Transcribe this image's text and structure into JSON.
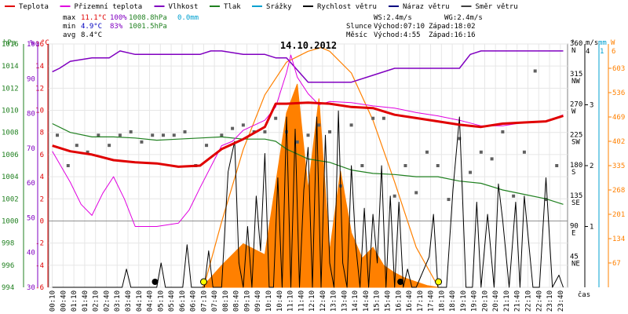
{
  "chart_data": {
    "type": "line",
    "title": "14.10.2012",
    "legend": [
      {
        "label": "Teplota",
        "color": "#e00000"
      },
      {
        "label": "Přizemní teplota",
        "color": "#e000e0"
      },
      {
        "label": "Vlhkost",
        "color": "#8000c0"
      },
      {
        "label": "Tlak",
        "color": "#208020"
      },
      {
        "label": "Srážky",
        "color": "#00a0d0"
      },
      {
        "label": "Rychlost větru",
        "color": "#000000"
      },
      {
        "label": "Náraz větru",
        "color": "#000080"
      },
      {
        "label": "Směr větru",
        "color": "#404040"
      }
    ],
    "stats": {
      "max_label": "max",
      "max_temp": "11.1°C",
      "max_hum": "100%",
      "max_press": "1008.8hPa",
      "max_rain": "0.0mm",
      "min_label": "min",
      "min_temp": "4.9°C",
      "min_hum": "83%",
      "min_press": "1001.5hPa",
      "avg_label": "avg",
      "avg_temp": "8.4°C"
    },
    "wind_info": {
      "ws": "WS:2.4m/s",
      "wg": "WG:2.4m/s"
    },
    "sun_info": {
      "label": "Slunce",
      "rise": "Východ:07:10",
      "set": "Západ:18:02"
    },
    "moon_info": {
      "label": "Měsíc",
      "rise": "Východ:4:55",
      "set": "Západ:16:16"
    },
    "axes": {
      "hpa_label": "hPa",
      "hum_label": "%",
      "temp_label": "°C",
      "dir_label": "°",
      "ms_label": "m/s",
      "mm_label": "mm",
      "w_label": "W",
      "x_label": "čas",
      "hpa_ticks": [
        "994",
        "996",
        "998",
        "1000",
        "1002",
        "1004",
        "1006",
        "1008",
        "1010",
        "1012",
        "1014",
        "1016"
      ],
      "hum_ticks": [
        "30",
        "40",
        "50",
        "60",
        "70",
        "80",
        "90",
        "100"
      ],
      "temp_ticks": [
        "-6",
        "-4",
        "-2",
        "0",
        "2",
        "4",
        "6",
        "8",
        "10",
        "12",
        "14",
        "16"
      ],
      "dir_ticks": [
        [
          "360",
          "N"
        ],
        [
          "315",
          "NW"
        ],
        [
          "270",
          "W"
        ],
        [
          "225",
          "SW"
        ],
        [
          "180",
          "S"
        ],
        [
          "135",
          "SE"
        ],
        [
          "90",
          "E"
        ],
        [
          "45",
          "NE"
        ]
      ],
      "ms_ticks": [
        "3",
        "2",
        "1"
      ],
      "ms_top": "4",
      "mm_top": "1",
      "w_ticks": [
        "67",
        "134",
        "201",
        "268",
        "335",
        "402",
        "469",
        "536",
        "603"
      ],
      "w_top": "6",
      "time_ticks": [
        "00:10",
        "00:40",
        "01:10",
        "01:40",
        "02:10",
        "02:40",
        "03:10",
        "03:40",
        "04:10",
        "04:40",
        "05:10",
        "05:40",
        "06:10",
        "06:40",
        "07:10",
        "07:40",
        "08:10",
        "08:40",
        "09:10",
        "09:40",
        "10:10",
        "10:40",
        "11:10",
        "11:40",
        "12:10",
        "12:40",
        "13:10",
        "13:40",
        "14:10",
        "14:40",
        "15:10",
        "15:40",
        "16:10",
        "16:40",
        "17:10",
        "17:40",
        "18:10",
        "18:40",
        "19:10",
        "19:40",
        "20:10",
        "20:40",
        "21:10",
        "21:40",
        "22:10",
        "22:40",
        "23:10",
        "23:40"
      ]
    },
    "ranges": {
      "temp": [
        -6,
        16
      ],
      "hum": [
        30,
        100
      ],
      "press": [
        994,
        1016
      ],
      "dir": [
        0,
        360
      ],
      "wind": [
        0,
        4
      ],
      "solar": [
        0,
        670
      ]
    },
    "series": {
      "temperature": {
        "name": "Teplota",
        "color": "#e00000",
        "x": [
          0.17,
          1,
          2,
          3,
          4,
          5,
          6,
          7,
          8,
          9,
          10,
          10.5,
          11,
          12,
          13,
          14,
          15,
          16,
          17,
          18,
          19,
          20,
          21,
          22,
          23,
          23.8
        ],
        "y": [
          6.8,
          6.3,
          6.0,
          5.5,
          5.3,
          5.2,
          4.9,
          5.0,
          6.5,
          7.4,
          8.5,
          10.6,
          10.6,
          10.7,
          10.6,
          10.3,
          10.2,
          9.6,
          9.3,
          9.0,
          8.7,
          8.5,
          8.8,
          8.9,
          9.0,
          9.5
        ]
      },
      "ground_temperature": {
        "name": "Přizemní teplota",
        "color": "#e000e0",
        "x": [
          0.17,
          1,
          1.5,
          2,
          2.5,
          3,
          3.5,
          4,
          5,
          6,
          6.5,
          7,
          8,
          8.5,
          9,
          10,
          10.5,
          11,
          11.2,
          11.5,
          12,
          12.5,
          13,
          14,
          15,
          16,
          17,
          18,
          19,
          20,
          21,
          22,
          23,
          23.8
        ],
        "y": [
          6.3,
          3.5,
          1.5,
          0.5,
          2.5,
          4.0,
          2.0,
          -0.5,
          -0.5,
          -0.2,
          1.0,
          3.0,
          6.8,
          7.2,
          8.2,
          9.1,
          10.3,
          13.4,
          15.0,
          13.0,
          11.5,
          10.5,
          10.8,
          10.7,
          10.4,
          10.2,
          9.8,
          9.5,
          9.1,
          8.6,
          8.6,
          8.9,
          9.0,
          9.6
        ]
      },
      "humidity": {
        "name": "Vlhkost",
        "color": "#8000c0",
        "x": [
          0.17,
          0.5,
          1,
          2,
          2.8,
          3.3,
          4,
          5,
          6,
          7,
          7.5,
          8,
          9,
          10,
          10.5,
          11,
          12,
          12.5,
          13,
          14,
          15,
          16,
          17,
          18,
          19,
          19.5,
          20,
          21,
          22,
          23,
          23.8
        ],
        "y": [
          92,
          93,
          95,
          96,
          96,
          98,
          97,
          97,
          97,
          97,
          98,
          98,
          97,
          97,
          96,
          96,
          89,
          89,
          89,
          89,
          91,
          93,
          93,
          93,
          93,
          97,
          98,
          98,
          98,
          98,
          98
        ]
      },
      "pressure": {
        "name": "Tlak",
        "color": "#208020",
        "x": [
          0.17,
          1,
          2,
          3,
          4,
          5,
          6,
          7,
          8,
          9,
          10,
          10.5,
          11,
          12,
          13,
          14,
          15,
          16,
          17,
          18,
          19,
          20,
          21,
          22,
          23,
          23.8
        ],
        "y": [
          1008.8,
          1008.0,
          1007.6,
          1007.6,
          1007.5,
          1007.3,
          1007.4,
          1007.5,
          1007.6,
          1007.4,
          1007.4,
          1007.2,
          1006.5,
          1005.6,
          1005.3,
          1004.6,
          1004.3,
          1004.2,
          1004.0,
          1004.0,
          1003.6,
          1003.4,
          1002.8,
          1002.4,
          1002.0,
          1001.5
        ]
      },
      "wind_speed": {
        "name": "Rychlost větru",
        "color": "#000000",
        "x": [
          0.17,
          3.4,
          3.6,
          3.8,
          5.0,
          5.2,
          5.4,
          6.2,
          6.4,
          6.6,
          7.2,
          7.4,
          7.6,
          8.0,
          8.3,
          8.6,
          8.8,
          9.0,
          9.2,
          9.4,
          9.6,
          9.8,
          10.0,
          10.2,
          10.4,
          10.6,
          10.8,
          11.0,
          11.2,
          11.4,
          11.6,
          11.8,
          12.0,
          12.2,
          12.4,
          12.6,
          12.8,
          13.0,
          13.2,
          13.4,
          13.6,
          13.8,
          14.0,
          14.2,
          14.4,
          14.6,
          14.8,
          15.0,
          15.2,
          15.4,
          15.6,
          15.8,
          16.0,
          16.2,
          16.4,
          16.6,
          16.8,
          17.0,
          17.6,
          17.8,
          18.0,
          18.4,
          18.7,
          19.0,
          19.3,
          19.6,
          19.8,
          20.0,
          20.3,
          20.6,
          20.8,
          21.0,
          21.3,
          21.6,
          21.8,
          22.0,
          22.4,
          22.7,
          23.0,
          23.3,
          23.6,
          23.8
        ],
        "y": [
          0,
          0,
          0.3,
          0,
          0,
          0.4,
          0,
          0,
          0.7,
          0,
          0,
          0.6,
          0,
          0,
          1.9,
          2.4,
          0.4,
          0,
          1.0,
          0,
          1.5,
          0.6,
          2.2,
          0,
          0,
          1.8,
          0,
          2.8,
          0,
          2.6,
          0,
          1.6,
          2.3,
          0,
          2.8,
          0,
          2.5,
          0.4,
          0,
          2.9,
          0.4,
          0,
          2.0,
          0.7,
          0,
          1.3,
          0,
          1.2,
          0.4,
          2.0,
          0,
          1.5,
          0,
          1.4,
          0,
          0.3,
          0,
          0,
          0.5,
          1.2,
          0,
          0,
          1.6,
          2.8,
          0,
          0,
          1.4,
          0,
          1.2,
          0,
          1.7,
          1.1,
          0,
          1.4,
          0,
          1.5,
          0,
          0,
          1.8,
          0,
          0.2,
          0
        ]
      },
      "solar": {
        "name": "W",
        "color": "#ff8000",
        "x": [
          7.1,
          8,
          9,
          10,
          11,
          11.5,
          12,
          12.5,
          13,
          13.5,
          14,
          14.5,
          15,
          15.5,
          16,
          16.5,
          17,
          17.5,
          18.0
        ],
        "y": [
          0,
          60,
          120,
          90,
          480,
          560,
          270,
          520,
          100,
          320,
          150,
          80,
          110,
          60,
          40,
          25,
          15,
          5,
          0
        ]
      },
      "sun_curve": {
        "x": [
          7.17,
          8,
          9,
          10,
          11,
          12,
          12.6,
          13,
          14,
          15,
          16,
          17,
          18.03
        ],
        "y": [
          0,
          180,
          380,
          530,
          620,
          650,
          660,
          650,
          590,
          460,
          290,
          110,
          0
        ]
      },
      "wind_dir_samples": {
        "x": [
          0.4,
          0.9,
          1.3,
          1.8,
          2.3,
          2.8,
          3.3,
          3.8,
          4.3,
          4.8,
          5.3,
          5.8,
          6.3,
          6.8,
          7.3,
          8.0,
          8.5,
          9.0,
          9.5,
          10.0,
          10.5,
          11.0,
          11.5,
          12.0,
          12.5,
          13.0,
          13.5,
          14.0,
          14.5,
          15.0,
          15.5,
          16.0,
          16.5,
          17.0,
          17.5,
          18.0,
          18.5,
          19.0,
          19.5,
          20.0,
          20.5,
          21.0,
          21.5,
          22.0,
          22.5,
          23.0,
          23.5
        ],
        "y": [
          225,
          180,
          210,
          200,
          225,
          210,
          225,
          230,
          215,
          225,
          225,
          225,
          230,
          180,
          210,
          225,
          235,
          240,
          230,
          230,
          250,
          230,
          215,
          225,
          240,
          230,
          150,
          240,
          180,
          250,
          250,
          135,
          180,
          140,
          200,
          180,
          130,
          220,
          170,
          200,
          190,
          230,
          135,
          200,
          320,
          130,
          180
        ]
      }
    },
    "markers": {
      "moonrise_h": 4.92,
      "moonset_h": 16.27,
      "sunrise_h": 7.17,
      "sunset_h": 18.03
    }
  }
}
